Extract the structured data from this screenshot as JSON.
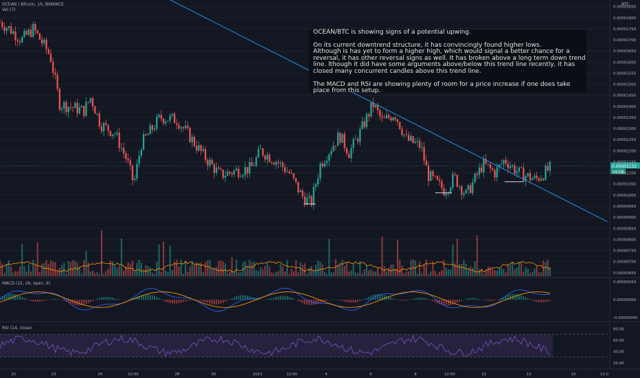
{
  "header": {
    "symbol": "OCEAN / Bitcoin, 1h, BINANCE",
    "vol_label": "Vol (7)",
    "macd_label": "MACD (12, 26, open, 9)",
    "rsi_label": "RSI (14, close)",
    "axis_currency": "BTC"
  },
  "price_tag": {
    "price": "0.00001132",
    "countdown": "14:18"
  },
  "note": {
    "line1": "OCEAN/BTC is showing signs of a potential upwing.",
    "para2": "On its current downtrend structure, it has convincingly found higher lows.",
    "para2b": "Although is has yet to form a higher high, which would signal a better chance for a reversal, it has other reversal signs as well. It has broken above a long term down trend line. lthough it did have some arguments above/below this trend line recently, it has closed many concurrent candles above this trend line.",
    "para3": "The MACD and RSI are showing plenty of room for a price increase if one does take place from this setup."
  },
  "colors": {
    "background": "#131722",
    "up": "#26a69a",
    "down": "#ef5350",
    "trendline": "#2196f3",
    "macd": "#2962ff",
    "signal": "#ff9800",
    "rsi": "#7e57c2"
  },
  "chart_data": [
    {
      "type": "candlestick",
      "name": "OCEAN / Bitcoin, 1h, BINANCE",
      "y_ticks": [
        "0.00001850",
        "0.00001800",
        "0.00001750",
        "0.00001700",
        "0.00001650",
        "0.00001600",
        "0.00001550",
        "0.00001500",
        "0.00001450",
        "0.00001400",
        "0.00001350",
        "0.00001300",
        "0.00001250",
        "0.00001200",
        "0.00001150",
        "0.00001100",
        "0.00001050",
        "0.00001000",
        "0.00000950",
        "0.00000900",
        "0.00000850",
        "0.00000800",
        "0.00000750",
        "0.00000700",
        "0.00000650"
      ],
      "ylim": [
        6.4e-06,
        1.88e-05
      ],
      "x_ticks": [
        "21",
        "23",
        "25",
        "12:00",
        "28",
        "30",
        "2021",
        "12:00",
        "4",
        "6",
        "8",
        "12:00",
        "11",
        "13",
        "15",
        "12:0"
      ],
      "close_path": [
        {
          "x": 0,
          "y": 1.78e-05
        },
        {
          "x": 0.4,
          "y": 1.75e-05
        },
        {
          "x": 0.9,
          "y": 1.7e-05
        },
        {
          "x": 1.4,
          "y": 1.75e-05
        },
        {
          "x": 2.1,
          "y": 1.63e-05
        },
        {
          "x": 2.5,
          "y": 1.41e-05
        },
        {
          "x": 2.9,
          "y": 1.4e-05
        },
        {
          "x": 3.5,
          "y": 1.38e-05
        },
        {
          "x": 3.8,
          "y": 1.44e-05
        },
        {
          "x": 4.2,
          "y": 1.32e-05
        },
        {
          "x": 4.8,
          "y": 1.28e-05
        },
        {
          "x": 5.3,
          "y": 1.16e-05
        },
        {
          "x": 5.6,
          "y": 1.05e-05
        },
        {
          "x": 5.9,
          "y": 1.23e-05
        },
        {
          "x": 6.7,
          "y": 1.35e-05
        },
        {
          "x": 7.4,
          "y": 1.34e-05
        },
        {
          "x": 7.9,
          "y": 1.27e-05
        },
        {
          "x": 8.5,
          "y": 1.18e-05
        },
        {
          "x": 9.2,
          "y": 1.09e-05
        },
        {
          "x": 9.9,
          "y": 1.11e-05
        },
        {
          "x": 10.5,
          "y": 1.12e-05
        },
        {
          "x": 10.9,
          "y": 1.2e-05
        },
        {
          "x": 11.6,
          "y": 1.15e-05
        },
        {
          "x": 12.1,
          "y": 1.1e-05
        },
        {
          "x": 12.6,
          "y": 1e-05
        },
        {
          "x": 13.0,
          "y": 9.6e-06
        },
        {
          "x": 13.4,
          "y": 1.14e-05
        },
        {
          "x": 14.2,
          "y": 1.27e-05
        },
        {
          "x": 14.6,
          "y": 1.19e-05
        },
        {
          "x": 15.0,
          "y": 1.27e-05
        },
        {
          "x": 15.6,
          "y": 1.41e-05
        },
        {
          "x": 16.0,
          "y": 1.33e-05
        },
        {
          "x": 16.5,
          "y": 1.37e-05
        },
        {
          "x": 17.0,
          "y": 1.25e-05
        },
        {
          "x": 17.6,
          "y": 1.22e-05
        },
        {
          "x": 17.9,
          "y": 1.09e-05
        },
        {
          "x": 18.6,
          "y": 1.02e-05
        },
        {
          "x": 19.0,
          "y": 1.08e-05
        },
        {
          "x": 19.5,
          "y": 1e-05
        },
        {
          "x": 20.2,
          "y": 1.14e-05
        },
        {
          "x": 20.7,
          "y": 1.1e-05
        },
        {
          "x": 21.1,
          "y": 1.16e-05
        },
        {
          "x": 21.7,
          "y": 1.1e-05
        },
        {
          "x": 22.4,
          "y": 1.07e-05
        },
        {
          "x": 23.0,
          "y": 1.12e-05
        }
      ],
      "x_range": [
        0,
        25.5
      ],
      "annotations": {
        "trendline": {
          "from": {
            "x": 4.2,
            "y": 2.04e-05
          },
          "to": {
            "x": 25.4,
            "y": 8.8e-06
          }
        },
        "low_markers": [
          {
            "x1": 12.7,
            "x2": 13.2,
            "y": 9.6e-06
          },
          {
            "x1": 18.2,
            "x2": 18.9,
            "y": 1.01e-05
          },
          {
            "x1": 21.1,
            "x2": 21.9,
            "y": 1.06e-05
          }
        ]
      }
    },
    {
      "type": "bar",
      "name": "Vol (7)",
      "note": "volume histogram with MA"
    },
    {
      "type": "line",
      "name": "MACD (12, 26, open, 9)",
      "y_ticks": [
        "0.00000050",
        "0.00000000",
        "-0.00000050"
      ],
      "ylim": [
        -6e-07,
        6e-07
      ]
    },
    {
      "type": "line",
      "name": "RSI (14, close)",
      "y_ticks": [
        "80.00",
        "60.00",
        "40.00",
        "20.00"
      ],
      "ylim": [
        10,
        90
      ],
      "bands": [
        30,
        70
      ]
    }
  ]
}
